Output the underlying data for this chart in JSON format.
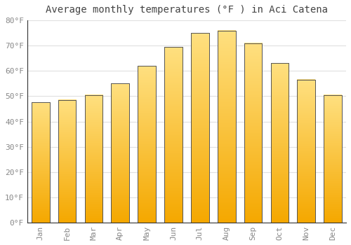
{
  "title": "Average monthly temperatures (°F ) in Aci Catena",
  "months": [
    "Jan",
    "Feb",
    "Mar",
    "Apr",
    "May",
    "Jun",
    "Jul",
    "Aug",
    "Sep",
    "Oct",
    "Nov",
    "Dec"
  ],
  "values": [
    47.5,
    48.5,
    50.5,
    55.0,
    62.0,
    69.5,
    75.0,
    76.0,
    71.0,
    63.0,
    56.5,
    50.5
  ],
  "ylim": [
    0,
    80
  ],
  "yticks": [
    0,
    10,
    20,
    30,
    40,
    50,
    60,
    70,
    80
  ],
  "ytick_labels": [
    "0°F",
    "10°F",
    "20°F",
    "30°F",
    "40°F",
    "50°F",
    "60°F",
    "70°F",
    "80°F"
  ],
  "background_color": "#ffffff",
  "plot_bg_color": "#ffffff",
  "grid_color": "#e0e0e0",
  "bar_color_bottom": "#F5A800",
  "bar_color_top": "#FFE080",
  "bar_edge_color": "#555555",
  "title_fontsize": 10,
  "tick_fontsize": 8,
  "tick_color": "#888888"
}
